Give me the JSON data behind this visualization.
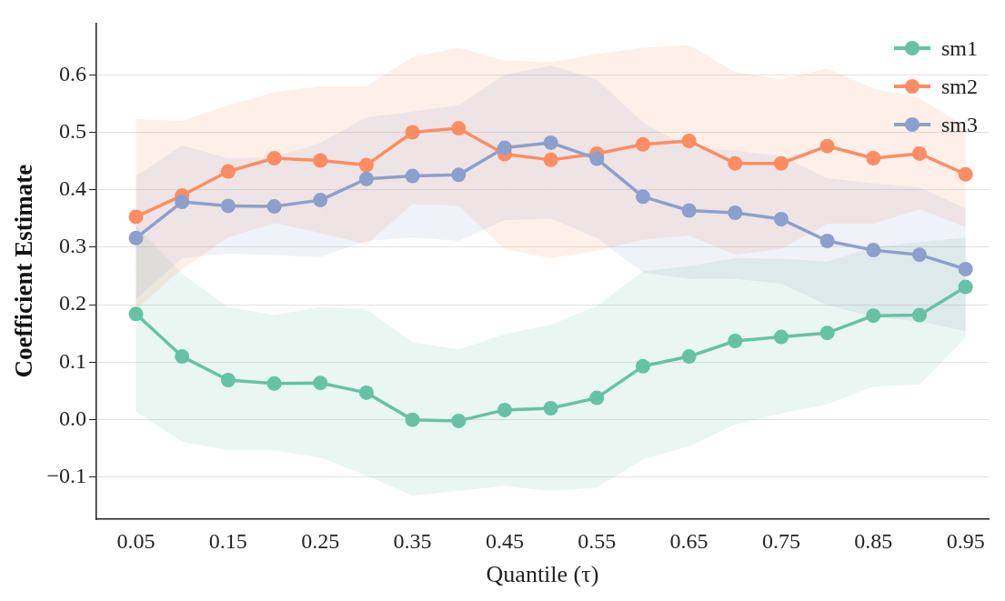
{
  "chart_data": {
    "type": "line",
    "xlabel": "Quantile (τ)",
    "ylabel": "Coefficient Estimate",
    "x": [
      0.05,
      0.1,
      0.15,
      0.2,
      0.25,
      0.3,
      0.35,
      0.4,
      0.45,
      0.5,
      0.55,
      0.6,
      0.65,
      0.7,
      0.75,
      0.8,
      0.85,
      0.9,
      0.95
    ],
    "series": [
      {
        "name": "sm1",
        "color": "#66c2a5",
        "values": [
          0.184,
          0.11,
          0.069,
          0.063,
          0.064,
          0.047,
          0.0,
          -0.002,
          0.017,
          0.02,
          0.038,
          0.093,
          0.11,
          0.137,
          0.144,
          0.151,
          0.181,
          0.182,
          0.231
        ],
        "lower": [
          0.014,
          -0.038,
          -0.053,
          -0.053,
          -0.066,
          -0.097,
          -0.132,
          -0.124,
          -0.115,
          -0.124,
          -0.118,
          -0.069,
          -0.046,
          -0.008,
          0.011,
          0.027,
          0.058,
          0.061,
          0.143
        ],
        "upper": [
          0.338,
          0.254,
          0.196,
          0.182,
          0.196,
          0.192,
          0.135,
          0.122,
          0.149,
          0.165,
          0.198,
          0.258,
          0.267,
          0.281,
          0.28,
          0.275,
          0.3,
          0.309,
          0.317
        ]
      },
      {
        "name": "sm2",
        "color": "#fc8d62",
        "values": [
          0.353,
          0.39,
          0.432,
          0.455,
          0.451,
          0.443,
          0.5,
          0.507,
          0.462,
          0.452,
          0.463,
          0.479,
          0.485,
          0.446,
          0.446,
          0.476,
          0.455,
          0.463,
          0.427
        ],
        "lower": [
          0.192,
          0.262,
          0.317,
          0.342,
          0.325,
          0.305,
          0.375,
          0.372,
          0.297,
          0.281,
          0.294,
          0.313,
          0.32,
          0.287,
          0.297,
          0.341,
          0.341,
          0.366,
          0.335
        ],
        "upper": [
          0.523,
          0.52,
          0.547,
          0.57,
          0.58,
          0.58,
          0.631,
          0.647,
          0.625,
          0.622,
          0.636,
          0.647,
          0.652,
          0.605,
          0.592,
          0.611,
          0.576,
          0.56,
          0.51
        ]
      },
      {
        "name": "sm3",
        "color": "#8da0cb",
        "values": [
          0.316,
          0.379,
          0.372,
          0.371,
          0.382,
          0.419,
          0.424,
          0.426,
          0.473,
          0.482,
          0.454,
          0.388,
          0.364,
          0.36,
          0.349,
          0.311,
          0.295,
          0.287,
          0.262
        ],
        "lower": [
          0.21,
          0.281,
          0.289,
          0.286,
          0.283,
          0.311,
          0.317,
          0.311,
          0.347,
          0.35,
          0.316,
          0.256,
          0.245,
          0.245,
          0.237,
          0.199,
          0.179,
          0.171,
          0.154
        ],
        "upper": [
          0.424,
          0.477,
          0.455,
          0.457,
          0.482,
          0.526,
          0.536,
          0.547,
          0.6,
          0.616,
          0.592,
          0.517,
          0.474,
          0.468,
          0.459,
          0.42,
          0.411,
          0.404,
          0.368
        ]
      }
    ],
    "xlim": [
      0.007,
      0.975
    ],
    "xticks": [
      0.05,
      0.15,
      0.25,
      0.35,
      0.45,
      0.55,
      0.65,
      0.75,
      0.85,
      0.95
    ],
    "ylim": [
      -0.173,
      0.69
    ],
    "yticks": [
      {
        "value": -0.1,
        "label": "−0.1"
      },
      {
        "value": 0,
        "label": "0.0"
      },
      {
        "value": 0.1,
        "label": "0.1"
      },
      {
        "value": 0.2,
        "label": "0.2"
      },
      {
        "value": 0.3,
        "label": "0.3"
      },
      {
        "value": 0.4,
        "label": "0.4"
      },
      {
        "value": 0.5,
        "label": "0.5"
      },
      {
        "value": 0.6,
        "label": "0.6"
      }
    ],
    "grid": "y",
    "legend": "top right",
    "marker": "circle",
    "line_style": "solid"
  }
}
